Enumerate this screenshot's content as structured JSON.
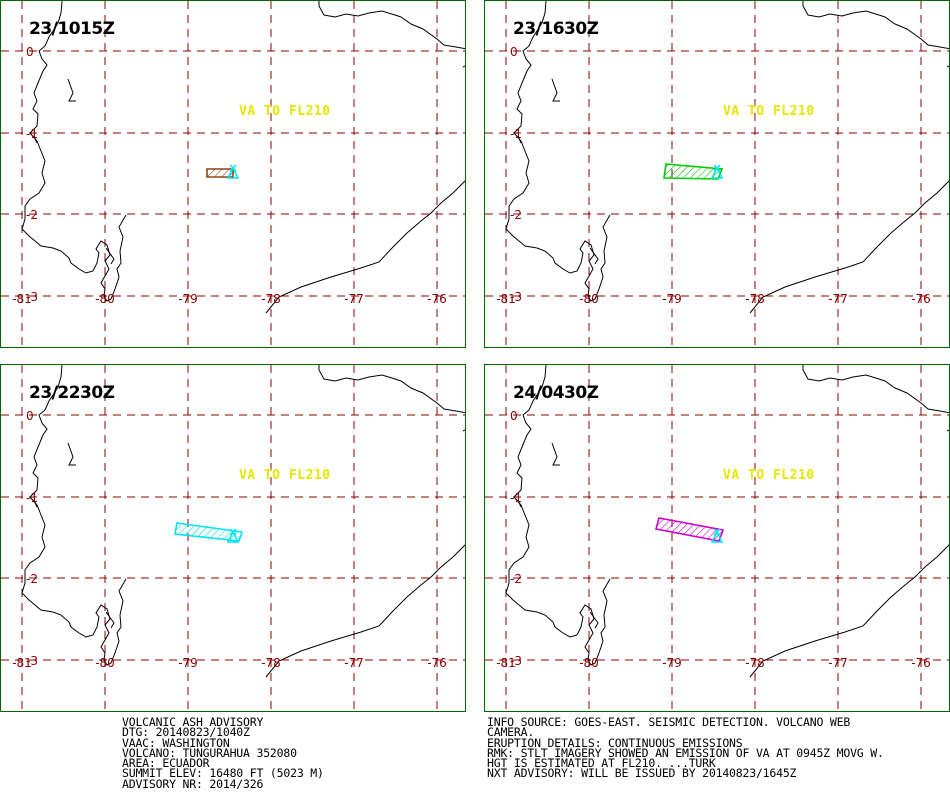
{
  "map": {
    "lat_labels": [
      "0",
      "-1",
      "-2",
      "-3"
    ],
    "lon_labels": [
      "-81",
      "-80",
      "-79",
      "-78",
      "-77",
      "-76"
    ],
    "va_label": "VA TO FL210"
  },
  "colors": {
    "panel_border": "#006400",
    "grid": "#8b0000",
    "label": "#e6e600",
    "coast": "#000000",
    "volcano": "#00e5ee"
  },
  "panels": [
    {
      "time": "23/1015Z",
      "ash_color": "#8b4513"
    },
    {
      "time": "23/1630Z",
      "ash_color": "#00cc00"
    },
    {
      "time": "23/2230Z",
      "ash_color": "#00e5ee"
    },
    {
      "time": "24/0430Z",
      "ash_color": "#cc00cc"
    }
  ],
  "advisory_left": [
    "VOLCANIC ASH ADVISORY",
    "DTG: 20140823/1040Z",
    "VAAC: WASHINGTON",
    "VOLCANO: TUNGURAHUA 352080",
    "AREA: ECUADOR",
    "SUMMIT ELEV: 16480 FT (5023 M)",
    "ADVISORY NR: 2014/326"
  ],
  "advisory_right": [
    "INFO SOURCE: GOES-EAST. SEISMIC DETECTION. VOLCANO WEB",
    "CAMERA.",
    "ERUPTION DETAILS: CONTINUOUS EMISSIONS",
    "RMK: STLT IMAGERY SHOWED AN EMISSION OF VA AT 0945Z MOVG W.",
    "HGT IS ESTIMATED AT FL210. ...TURK",
    "NXT ADVISORY: WILL BE ISSUED BY 20140823/1645Z"
  ]
}
